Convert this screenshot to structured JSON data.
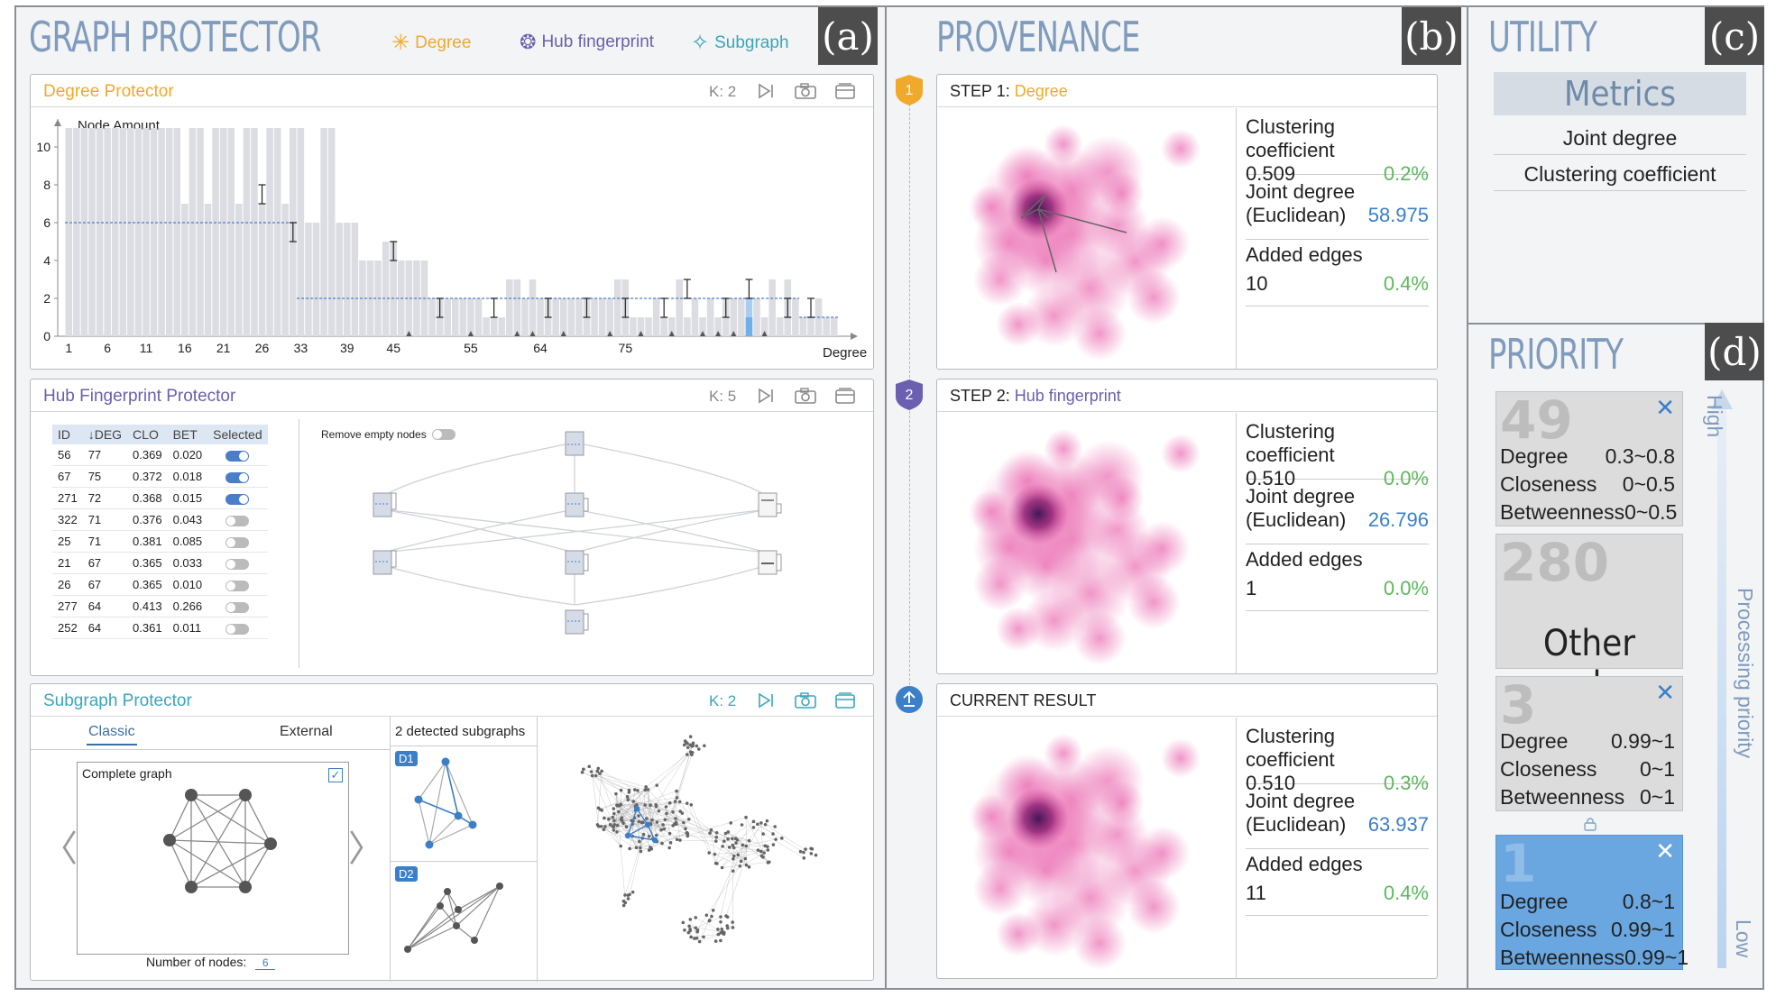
{
  "graph_protector": {
    "title": "GRAPH PROTECTOR",
    "panel_letter": "(a)",
    "legend": [
      {
        "label": "Degree",
        "color": "#f0a92a",
        "icon": "asterisk-icon"
      },
      {
        "label": "Hub fingerprint",
        "color": "#6a5fb0",
        "icon": "fingerprint-icon"
      },
      {
        "label": "Subgraph",
        "color": "#3aa6b8",
        "icon": "star4-icon"
      }
    ],
    "degree_panel": {
      "title": "Degree Protector",
      "k": "K: 2",
      "y_axis_label": "Node Amount",
      "x_axis_label": "Degree"
    },
    "hub_panel": {
      "title": "Hub Fingerprint Protector",
      "k": "K: 5",
      "columns": [
        "ID",
        "↓DEG",
        "CLO",
        "BET",
        "Selected"
      ],
      "rows": [
        {
          "id": "56",
          "deg": "77",
          "clo": "0.369",
          "bet": "0.020",
          "selected": true
        },
        {
          "id": "67",
          "deg": "75",
          "clo": "0.372",
          "bet": "0.018",
          "selected": true
        },
        {
          "id": "271",
          "deg": "72",
          "clo": "0.368",
          "bet": "0.015",
          "selected": true
        },
        {
          "id": "322",
          "deg": "71",
          "clo": "0.376",
          "bet": "0.043",
          "selected": false
        },
        {
          "id": "25",
          "deg": "71",
          "clo": "0.381",
          "bet": "0.085",
          "selected": false
        },
        {
          "id": "21",
          "deg": "67",
          "clo": "0.365",
          "bet": "0.033",
          "selected": false
        },
        {
          "id": "26",
          "deg": "67",
          "clo": "0.365",
          "bet": "0.010",
          "selected": false
        },
        {
          "id": "277",
          "deg": "64",
          "clo": "0.413",
          "bet": "0.266",
          "selected": false
        },
        {
          "id": "252",
          "deg": "64",
          "clo": "0.361",
          "bet": "0.011",
          "selected": false
        }
      ],
      "remove_empty_label": "Remove empty nodes"
    },
    "subgraph_panel": {
      "title": "Subgraph Protector",
      "k": "K: 2",
      "tab_classic": "Classic",
      "tab_external": "External",
      "complete_graph_label": "Complete graph",
      "num_nodes_label": "Number of nodes:",
      "num_nodes_value": "6",
      "detected_label": "2 detected subgraphs",
      "d1": "D1",
      "d2": "D2"
    }
  },
  "provenance": {
    "title": "PROVENANCE",
    "panel_letter": "(b)",
    "steps": [
      {
        "marker": "1",
        "prefix": "STEP 1: ",
        "name": "Degree",
        "name_color": "#f0a92a",
        "clustering_label": "Clustering coefficient",
        "clustering_value": "0.509",
        "clustering_change": "0.2%",
        "joint_label_1": "Joint degree",
        "joint_label_2": "(Euclidean)",
        "joint_value": "58.975",
        "added_label": "Added edges",
        "added_value": "10",
        "added_change": "0.4%"
      },
      {
        "marker": "2",
        "prefix": "STEP 2: ",
        "name": "Hub fingerprint",
        "name_color": "#6a5fb0",
        "clustering_label": "Clustering coefficient",
        "clustering_value": "0.510",
        "clustering_change": "0.0%",
        "joint_label_1": "Joint degree",
        "joint_label_2": "(Euclidean)",
        "joint_value": "26.796",
        "added_label": "Added edges",
        "added_value": "1",
        "added_change": "0.0%"
      },
      {
        "marker": "",
        "prefix": "CURRENT  RESULT",
        "name": "",
        "name_color": "#222222",
        "clustering_label": "Clustering coefficient",
        "clustering_value": "0.510",
        "clustering_change": "0.3%",
        "joint_label_1": "Joint degree",
        "joint_label_2": "(Euclidean)",
        "joint_value": "63.937",
        "added_label": "Added edges",
        "added_value": "11",
        "added_change": "0.4%"
      }
    ]
  },
  "utility": {
    "title": "UTILITY",
    "panel_letter": "(c)",
    "metrics_header": "Metrics",
    "metrics": [
      "Joint degree",
      "Clustering coefficient"
    ]
  },
  "priority": {
    "title": "PRIORITY",
    "panel_letter": "(d)",
    "axis_high": "High",
    "axis_low": "Low",
    "axis_label": "Processing priority",
    "cards": [
      {
        "count": "49",
        "rows": [
          [
            "Degree",
            "0.3~0.8"
          ],
          [
            "Closeness",
            "0~0.5"
          ],
          [
            "Betweenness",
            "0~0.5"
          ]
        ]
      },
      {
        "count": "280",
        "label": "Other nodes"
      },
      {
        "count": "3",
        "rows": [
          [
            "Degree",
            "0.99~1"
          ],
          [
            "Closeness",
            "0~1"
          ],
          [
            "Betweenness",
            "0~1"
          ]
        ]
      },
      {
        "count": "1",
        "rows": [
          [
            "Degree",
            "0.8~1"
          ],
          [
            "Closeness",
            "0.99~1"
          ],
          [
            "Betweenness",
            "0.99~1"
          ]
        ]
      }
    ]
  },
  "chart_data": {
    "type": "bar",
    "x_tick_labels": [
      "1",
      "6",
      "11",
      "16",
      "21",
      "26",
      "33",
      "39",
      "45",
      "55",
      "64",
      "75"
    ],
    "y_tick_labels": [
      "0",
      "2",
      "4",
      "6",
      "8",
      "10"
    ],
    "ylim": [
      0,
      11
    ],
    "ylabel": "Node Amount",
    "xlabel": "Degree",
    "values": [
      11,
      11,
      11,
      11,
      11,
      11,
      11,
      11,
      11,
      11,
      11,
      11,
      11,
      11,
      11,
      7,
      11,
      11,
      7,
      11,
      11,
      11,
      7,
      11,
      11,
      7,
      11,
      11,
      7,
      11,
      11,
      6,
      6,
      11,
      11,
      6,
      6,
      6,
      4,
      4,
      4,
      5,
      5,
      4,
      4,
      4,
      4,
      2,
      2,
      2,
      2,
      2,
      2,
      2,
      1,
      1,
      1,
      3,
      3,
      2,
      3,
      2,
      2,
      2,
      2,
      2,
      2,
      2,
      2,
      2,
      2,
      3,
      3,
      1,
      1,
      1,
      2,
      1,
      1,
      3,
      1,
      2,
      1,
      2,
      1,
      2,
      2,
      2,
      2,
      2,
      1,
      3,
      1,
      3,
      2,
      1,
      1,
      2,
      1,
      1
    ],
    "threshold_segments": [
      [
        0,
        30,
        6
      ],
      [
        30,
        95,
        2
      ],
      [
        95,
        100,
        1
      ]
    ],
    "highlight_index": 88
  }
}
